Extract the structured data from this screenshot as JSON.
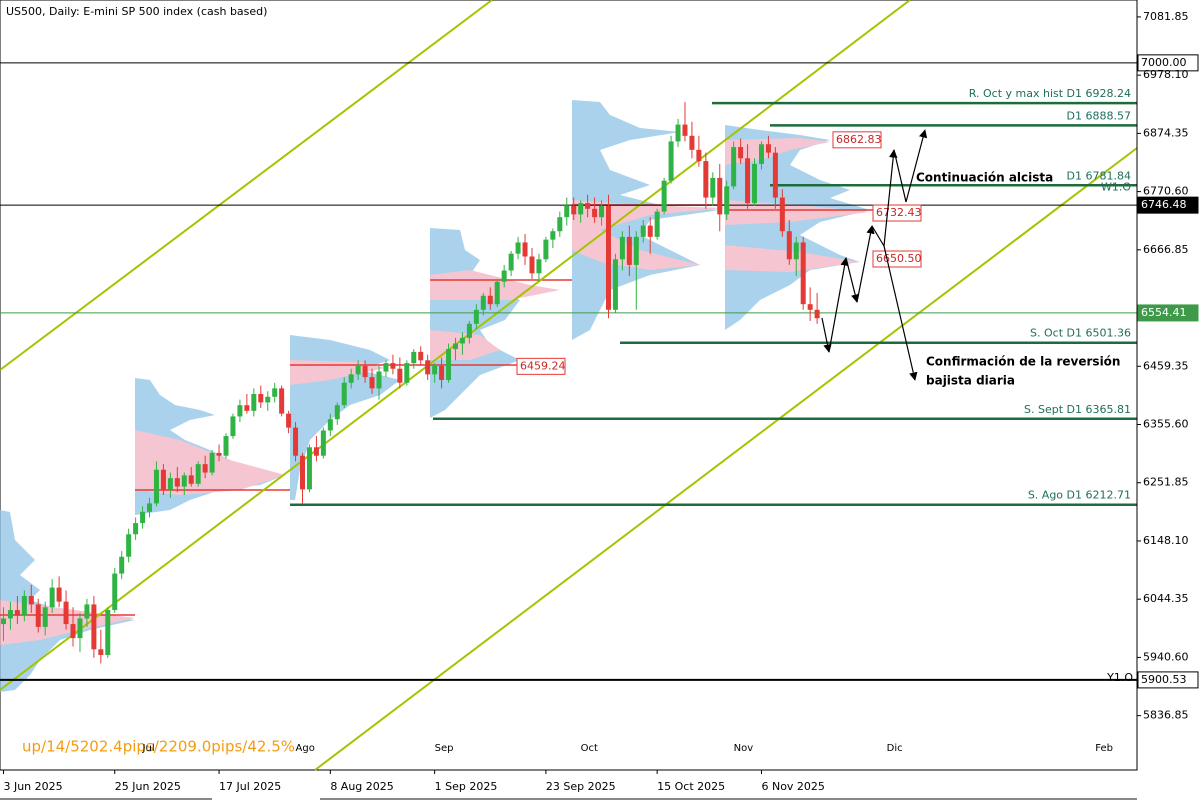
{
  "chart_data": {
    "type": "candlestick",
    "title": "US500, Daily:  E-mini SP 500 index (cash based)",
    "up_color": "#2fb344",
    "down_color": "#e53935",
    "xlim": [
      -0.5,
      163
    ],
    "ylim": [
      5740,
      7112
    ],
    "yticks": [
      7081.85,
      {
        "value": 6978.1,
        "label": "6978.10"
      },
      6874.35,
      {
        "value": 6770.6,
        "label": "6770.60"
      },
      6666.85,
      6459.35,
      {
        "value": 6355.6,
        "label": "6355.60"
      },
      6251.85,
      {
        "value": 6148.1,
        "label": "6148.10"
      },
      6044.35,
      {
        "value": 5940.6,
        "label": "5940.60"
      },
      5836.85
    ],
    "xticks": [
      {
        "value": 0,
        "label": "3 Jun 2025"
      },
      {
        "value": 16,
        "label": "25 Jun 2025"
      },
      {
        "value": 31,
        "label": "17 Jul 2025"
      },
      {
        "value": 47,
        "label": "8 Aug 2025"
      },
      {
        "value": 62,
        "label": "1 Sep 2025"
      },
      {
        "value": 78,
        "label": "23 Sep 2025"
      },
      {
        "value": 94,
        "label": "15 Oct 2025"
      },
      {
        "value": 109,
        "label": "6 Nov 2025"
      }
    ],
    "months": [
      {
        "value": 20,
        "label": "Jul"
      },
      {
        "value": 42,
        "label": "Ago"
      },
      {
        "value": 62,
        "label": "Sep"
      },
      {
        "value": 83,
        "label": "Oct"
      },
      {
        "value": 105,
        "label": "Nov"
      },
      {
        "value": 127,
        "label": "Dic"
      },
      {
        "value": 157,
        "label": "Feb"
      }
    ],
    "candles": [
      [
        6000,
        6030,
        5970,
        6010
      ],
      [
        6010,
        6040,
        5990,
        6025
      ],
      [
        6025,
        6050,
        6000,
        6015
      ],
      [
        6015,
        6060,
        6005,
        6050
      ],
      [
        6050,
        6070,
        6020,
        6035
      ],
      [
        6035,
        6045,
        5985,
        5995
      ],
      [
        5995,
        6040,
        5980,
        6030
      ],
      [
        6030,
        6080,
        6020,
        6065
      ],
      [
        6065,
        6085,
        6030,
        6040
      ],
      [
        6040,
        6060,
        5990,
        6000
      ],
      [
        6000,
        6030,
        5960,
        5975
      ],
      [
        5975,
        6020,
        5950,
        6010
      ],
      [
        6010,
        6045,
        5995,
        6035
      ],
      [
        6035,
        6050,
        5940,
        5955
      ],
      [
        5955,
        5990,
        5930,
        5945
      ],
      [
        5945,
        6030,
        5940,
        6025
      ],
      [
        6025,
        6100,
        6020,
        6090
      ],
      [
        6090,
        6130,
        6080,
        6120
      ],
      [
        6120,
        6170,
        6110,
        6160
      ],
      [
        6160,
        6190,
        6150,
        6180
      ],
      [
        6180,
        6210,
        6170,
        6200
      ],
      [
        6200,
        6225,
        6190,
        6215
      ],
      [
        6215,
        6290,
        6210,
        6275
      ],
      [
        6275,
        6285,
        6230,
        6240
      ],
      [
        6240,
        6270,
        6225,
        6260
      ],
      [
        6260,
        6280,
        6235,
        6245
      ],
      [
        6245,
        6270,
        6230,
        6265
      ],
      [
        6265,
        6280,
        6245,
        6250
      ],
      [
        6250,
        6290,
        6245,
        6285
      ],
      [
        6285,
        6300,
        6260,
        6270
      ],
      [
        6270,
        6310,
        6265,
        6305
      ],
      [
        6305,
        6320,
        6290,
        6300
      ],
      [
        6300,
        6340,
        6295,
        6335
      ],
      [
        6335,
        6375,
        6330,
        6370
      ],
      [
        6370,
        6400,
        6360,
        6390
      ],
      [
        6390,
        6410,
        6375,
        6380
      ],
      [
        6380,
        6420,
        6370,
        6410
      ],
      [
        6410,
        6425,
        6385,
        6395
      ],
      [
        6395,
        6415,
        6380,
        6405
      ],
      [
        6405,
        6430,
        6395,
        6420
      ],
      [
        6420,
        6425,
        6370,
        6375
      ],
      [
        6375,
        6380,
        6340,
        6350
      ],
      [
        6350,
        6360,
        6290,
        6300
      ],
      [
        6300,
        6305,
        6215,
        6240
      ],
      [
        6240,
        6320,
        6235,
        6315
      ],
      [
        6315,
        6335,
        6290,
        6300
      ],
      [
        6300,
        6350,
        6295,
        6345
      ],
      [
        6345,
        6375,
        6335,
        6365
      ],
      [
        6365,
        6395,
        6355,
        6390
      ],
      [
        6390,
        6440,
        6385,
        6430
      ],
      [
        6430,
        6455,
        6420,
        6445
      ],
      [
        6445,
        6470,
        6435,
        6460
      ],
      [
        6460,
        6470,
        6430,
        6440
      ],
      [
        6440,
        6455,
        6410,
        6420
      ],
      [
        6420,
        6460,
        6400,
        6450
      ],
      [
        6450,
        6470,
        6440,
        6465
      ],
      [
        6465,
        6480,
        6445,
        6455
      ],
      [
        6455,
        6475,
        6420,
        6430
      ],
      [
        6430,
        6470,
        6425,
        6465
      ],
      [
        6465,
        6490,
        6455,
        6485
      ],
      [
        6485,
        6495,
        6460,
        6470
      ],
      [
        6470,
        6480,
        6435,
        6445
      ],
      [
        6445,
        6465,
        6430,
        6460
      ],
      [
        6460,
        6475,
        6420,
        6435
      ],
      [
        6435,
        6500,
        6430,
        6490
      ],
      [
        6490,
        6510,
        6470,
        6500
      ],
      [
        6500,
        6520,
        6480,
        6510
      ],
      [
        6510,
        6540,
        6500,
        6535
      ],
      [
        6535,
        6570,
        6525,
        6560
      ],
      [
        6560,
        6590,
        6550,
        6585
      ],
      [
        6585,
        6600,
        6560,
        6570
      ],
      [
        6570,
        6615,
        6565,
        6610
      ],
      [
        6610,
        6640,
        6600,
        6630
      ],
      [
        6630,
        6665,
        6620,
        6660
      ],
      [
        6660,
        6690,
        6650,
        6680
      ],
      [
        6680,
        6695,
        6640,
        6655
      ],
      [
        6655,
        6670,
        6615,
        6625
      ],
      [
        6625,
        6660,
        6610,
        6650
      ],
      [
        6650,
        6690,
        6645,
        6685
      ],
      [
        6685,
        6705,
        6670,
        6700
      ],
      [
        6700,
        6735,
        6690,
        6725
      ],
      [
        6725,
        6760,
        6710,
        6745
      ],
      [
        6745,
        6760,
        6720,
        6730
      ],
      [
        6730,
        6755,
        6715,
        6750
      ],
      [
        6750,
        6765,
        6725,
        6740
      ],
      [
        6740,
        6760,
        6715,
        6725
      ],
      [
        6725,
        6755,
        6710,
        6745
      ],
      [
        6745,
        6765,
        6545,
        6560
      ],
      [
        6560,
        6660,
        6555,
        6650
      ],
      [
        6650,
        6700,
        6630,
        6690
      ],
      [
        6690,
        6710,
        6620,
        6640
      ],
      [
        6640,
        6700,
        6560,
        6690
      ],
      [
        6690,
        6720,
        6680,
        6710
      ],
      [
        6710,
        6725,
        6660,
        6690
      ],
      [
        6690,
        6740,
        6685,
        6735
      ],
      [
        6735,
        6795,
        6730,
        6790
      ],
      [
        6790,
        6870,
        6785,
        6860
      ],
      [
        6860,
        6900,
        6850,
        6890
      ],
      [
        6890,
        6930,
        6860,
        6870
      ],
      [
        6870,
        6895,
        6830,
        6845
      ],
      [
        6845,
        6870,
        6815,
        6825
      ],
      [
        6825,
        6840,
        6740,
        6760
      ],
      [
        6760,
        6805,
        6745,
        6795
      ],
      [
        6795,
        6820,
        6700,
        6730
      ],
      [
        6730,
        6790,
        6720,
        6780
      ],
      [
        6780,
        6860,
        6775,
        6850
      ],
      [
        6850,
        6865,
        6820,
        6830
      ],
      [
        6830,
        6855,
        6740,
        6750
      ],
      [
        6750,
        6830,
        6745,
        6820
      ],
      [
        6820,
        6860,
        6810,
        6855
      ],
      [
        6855,
        6870,
        6830,
        6840
      ],
      [
        6840,
        6850,
        6740,
        6760
      ],
      [
        6760,
        6775,
        6690,
        6700
      ],
      [
        6700,
        6720,
        6640,
        6650
      ],
      [
        6650,
        6690,
        6620,
        6680
      ],
      [
        6680,
        6690,
        6560,
        6570
      ],
      [
        6570,
        6600,
        6540,
        6560
      ],
      [
        6560,
        6590,
        6535,
        6545
      ]
    ],
    "levels": [
      {
        "value": 6928.24,
        "label": "R. Oct y max hist D1 6928.24"
      },
      {
        "value": 6888.57,
        "label": "D1 6888.57"
      },
      {
        "value": 6781.84,
        "label": "D1 6781.84",
        "tag": "W1.O"
      },
      {
        "value": 6501.36,
        "label": "S. Oct D1 6501.36"
      },
      {
        "value": 6365.81,
        "label": "S. Sept D1 6365.81"
      },
      {
        "value": 6212.71,
        "label": "S. Ago D1 6212.71"
      }
    ],
    "axis_boxes": [
      {
        "value": 7000,
        "label": "7000.00",
        "style": "outline"
      },
      {
        "value": 6746.48,
        "style": "dark"
      },
      {
        "value": 6554.41,
        "style": "green"
      },
      {
        "value": 5900.53,
        "style": "outline",
        "tag": "Y1.O"
      }
    ],
    "poc_boxes": [
      {
        "value": 6862.83
      },
      {
        "value": 6732.43
      },
      {
        "value": 6650.5,
        "label": "6650.50"
      },
      {
        "value": 6459.24
      }
    ],
    "annotations": [
      "Continuación alcista",
      "Confirmación de la reversión",
      "bajista diaria"
    ],
    "stats": "up/14/5202.4pips/2209.0pips/42.5%"
  }
}
